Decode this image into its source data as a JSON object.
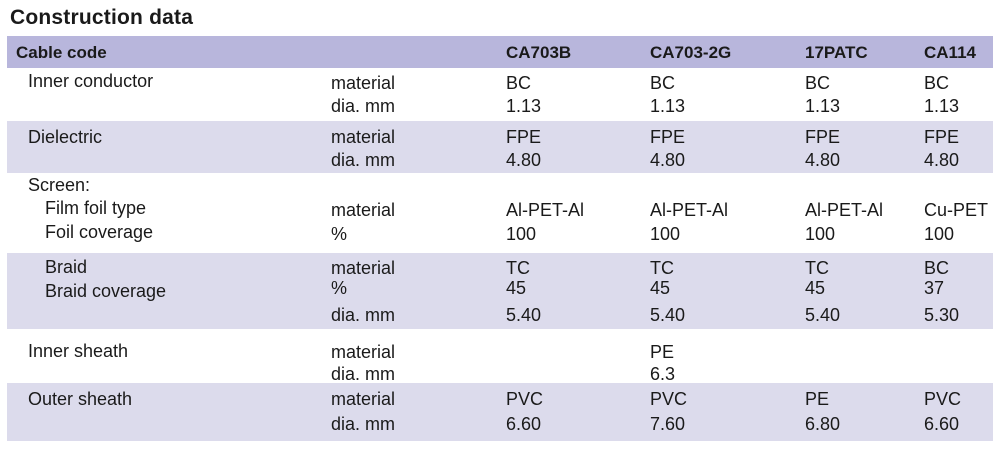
{
  "title": "Construction data",
  "columns": [
    "Cable code",
    "CA703B",
    "CA703-2G",
    "17PATC",
    "CA114"
  ],
  "rows": {
    "inner_conductor": {
      "label": "Inner conductor",
      "units": [
        "material",
        "dia. mm"
      ],
      "values": [
        [
          "BC",
          "1.13"
        ],
        [
          "BC",
          "1.13"
        ],
        [
          "BC",
          "1.13"
        ],
        [
          "BC",
          "1.13"
        ]
      ]
    },
    "dielectric": {
      "label": "Dielectric",
      "units": [
        "material",
        "dia. mm"
      ],
      "values": [
        [
          "FPE",
          "4.80"
        ],
        [
          "FPE",
          "4.80"
        ],
        [
          "FPE",
          "4.80"
        ],
        [
          "FPE",
          "4.80"
        ]
      ]
    },
    "screen": {
      "label": "Screen:",
      "sub_labels": [
        "Film foil type",
        "Foil coverage"
      ],
      "units": [
        "material",
        "%"
      ],
      "values": [
        [
          "Al-PET-Al",
          "100"
        ],
        [
          "Al-PET-Al",
          "100"
        ],
        [
          "Al-PET-Al",
          "100"
        ],
        [
          "Cu-PET",
          "100"
        ]
      ]
    },
    "braid": {
      "sub_labels": [
        "Braid",
        "Braid coverage"
      ],
      "units": [
        "material",
        "%",
        "dia. mm"
      ],
      "values": [
        [
          "TC",
          "45",
          "5.40"
        ],
        [
          "TC",
          "45",
          "5.40"
        ],
        [
          "TC",
          "45",
          "5.40"
        ],
        [
          "BC",
          "37",
          "5.30"
        ]
      ]
    },
    "inner_sheath": {
      "label": "Inner sheath",
      "units": [
        "material",
        "dia. mm"
      ],
      "values": [
        [
          "",
          ""
        ],
        [
          "PE",
          "6.3"
        ],
        [
          "",
          ""
        ],
        [
          "",
          ""
        ]
      ]
    },
    "outer_sheath": {
      "label": "Outer sheath",
      "units": [
        "material",
        "dia. mm"
      ],
      "values": [
        [
          "PVC",
          "6.60"
        ],
        [
          "PVC",
          "7.60"
        ],
        [
          "PE",
          "6.80"
        ],
        [
          "PVC",
          "6.60"
        ]
      ]
    }
  }
}
